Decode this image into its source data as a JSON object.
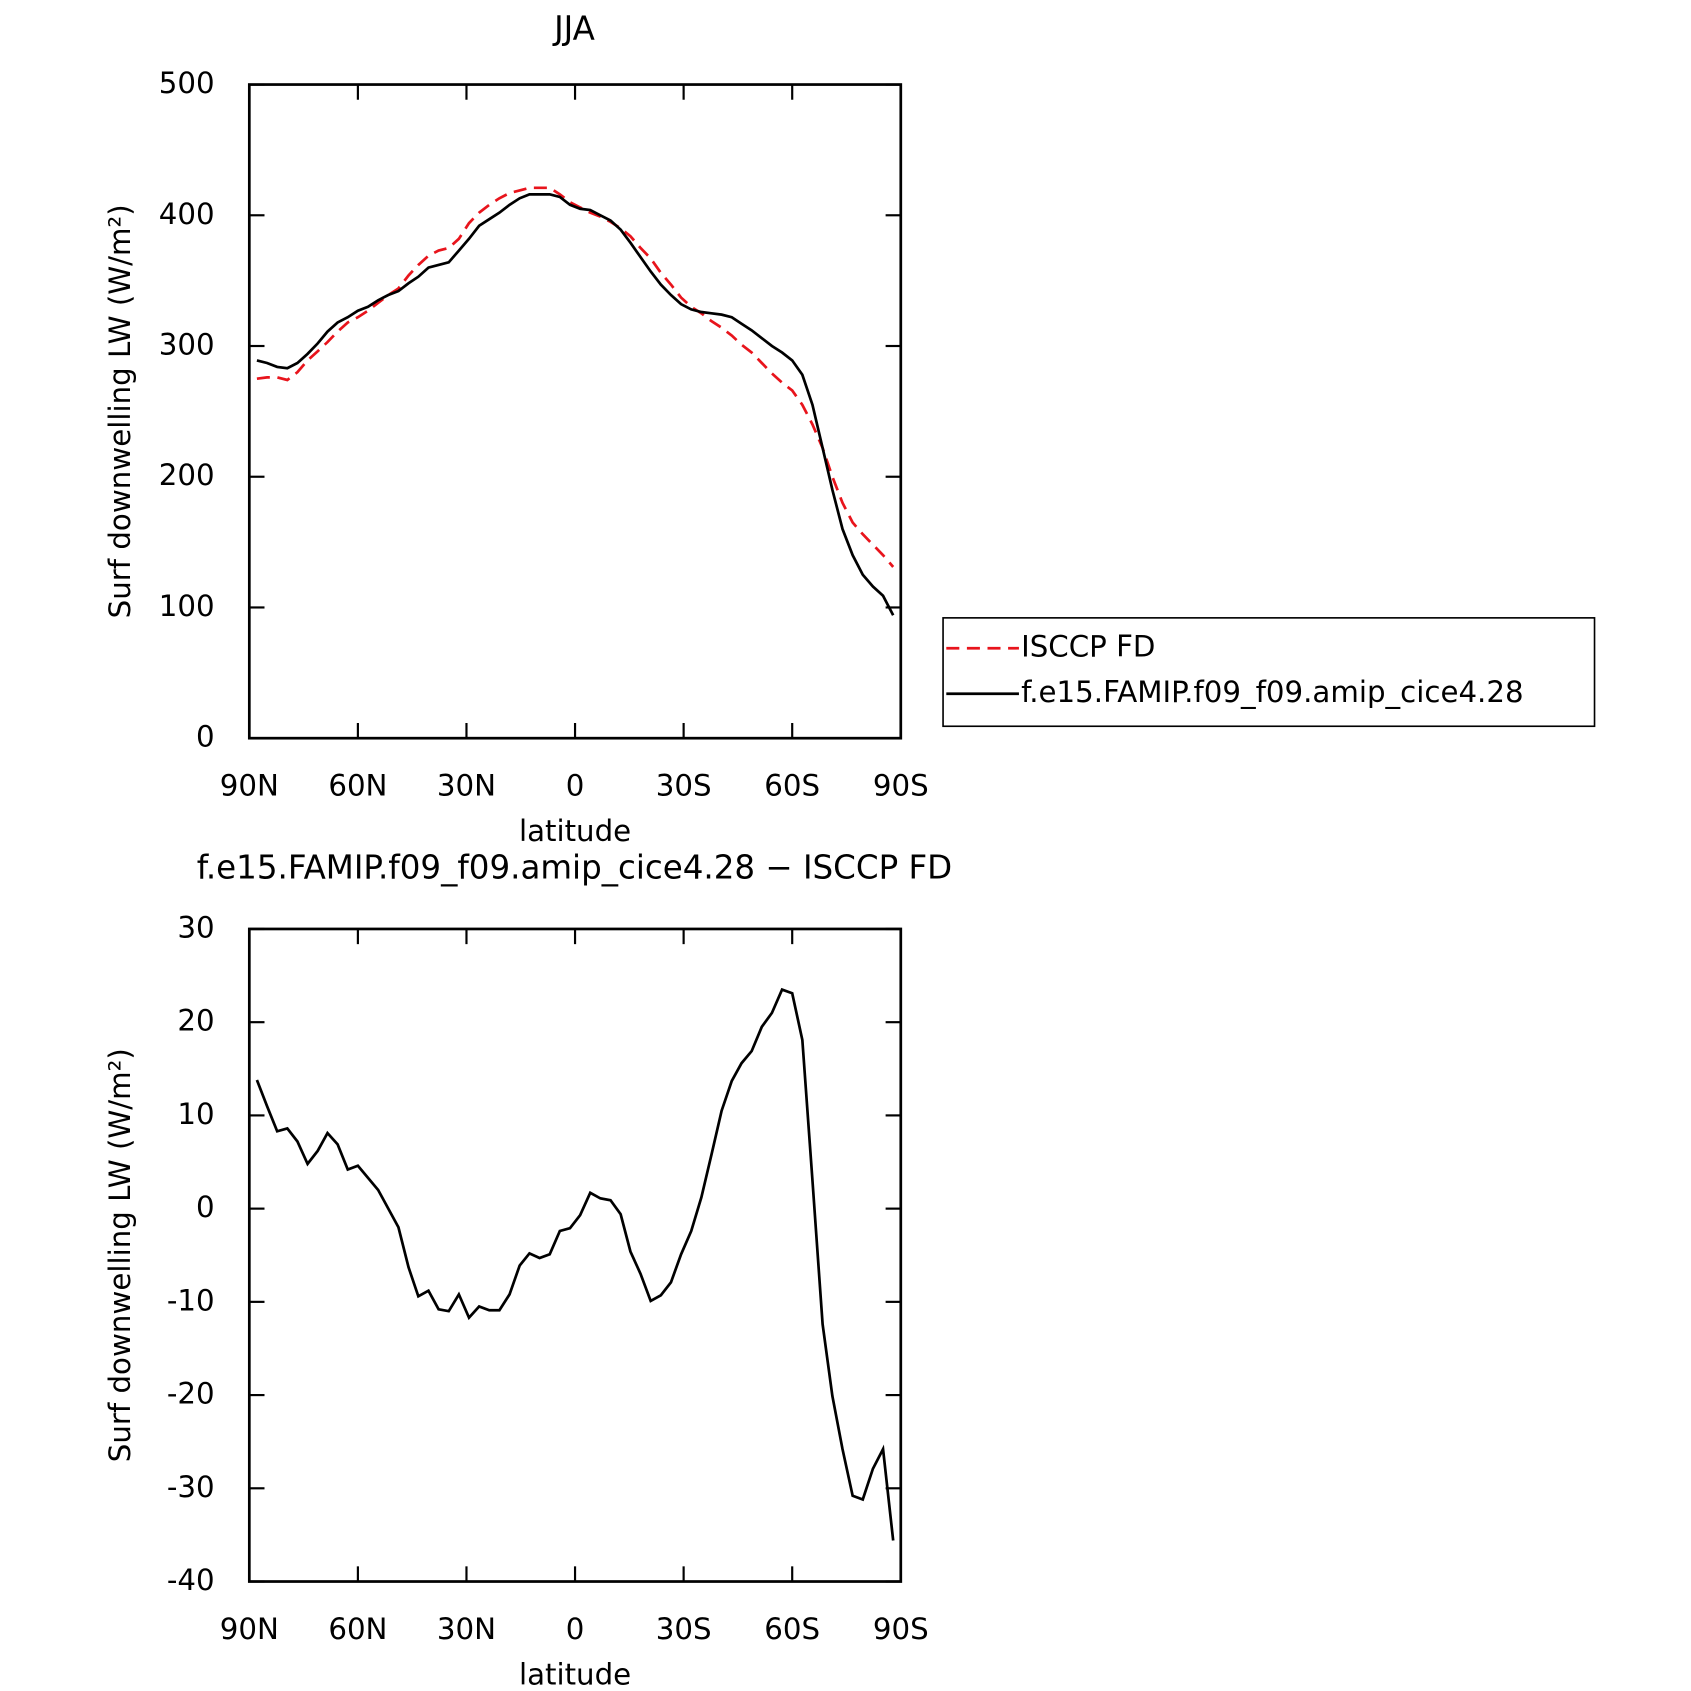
{
  "chart_data": [
    {
      "type": "line",
      "title": "JJA",
      "xlabel": "latitude",
      "ylabel": "Surf downwelling LW (W/m²)",
      "x": [
        87.9,
        85.1,
        82.3,
        79.5,
        76.7,
        73.9,
        71.1,
        68.4,
        65.6,
        62.8,
        60.0,
        57.2,
        54.4,
        51.6,
        48.8,
        46.0,
        43.3,
        40.5,
        37.7,
        34.9,
        32.1,
        29.3,
        26.5,
        23.7,
        20.9,
        18.1,
        15.3,
        12.6,
        9.8,
        7.0,
        4.2,
        1.4,
        -1.4,
        -4.2,
        -7.0,
        -9.8,
        -12.6,
        -15.3,
        -18.1,
        -20.9,
        -23.7,
        -26.5,
        -29.3,
        -32.1,
        -34.9,
        -37.7,
        -40.5,
        -43.3,
        -46.0,
        -48.8,
        -51.6,
        -54.4,
        -57.2,
        -60.0,
        -62.8,
        -65.6,
        -68.4,
        -71.1,
        -73.9,
        -76.7,
        -79.5,
        -82.3,
        -85.1,
        -87.9
      ],
      "series": [
        {
          "name": "ISCCP FD",
          "color": "#e8141c",
          "style": "dashed",
          "values": [
            275,
            276,
            276,
            274,
            280,
            289,
            296,
            303,
            311,
            318,
            322,
            327,
            333,
            339,
            344,
            354,
            362,
            369,
            373,
            375,
            382,
            394,
            402,
            408,
            413,
            417,
            419,
            421,
            421,
            421,
            416,
            410,
            406,
            402,
            399,
            395,
            390,
            384,
            375,
            367,
            356,
            347,
            337,
            330,
            325,
            319,
            314,
            308,
            301,
            295,
            287,
            279,
            272,
            266,
            255,
            240,
            222,
            200,
            180,
            165,
            156,
            148,
            140,
            131
          ]
        },
        {
          "name": "f.e15.FAMIP.f09_f09.amip_cice4.28",
          "color": "#000000",
          "style": "solid",
          "values": [
            289,
            287,
            284,
            283,
            287,
            294,
            302,
            311,
            318,
            322,
            327,
            330,
            335,
            339,
            342,
            348,
            353,
            360,
            362,
            364,
            373,
            382,
            392,
            397,
            402,
            408,
            413,
            416,
            416,
            416,
            414,
            408,
            405,
            404,
            400,
            396,
            389,
            379,
            368,
            357,
            347,
            339,
            332,
            328,
            326,
            325,
            324,
            322,
            317,
            312,
            306,
            300,
            295,
            289,
            278,
            255,
            222,
            190,
            160,
            140,
            125,
            116,
            109,
            94
          ]
        }
      ],
      "xlim": [
        90,
        -90
      ],
      "xticks": [
        {
          "value": 90,
          "label": "90N"
        },
        {
          "value": 60,
          "label": "60N"
        },
        {
          "value": 30,
          "label": "30N"
        },
        0,
        {
          "value": -30,
          "label": "30S"
        },
        {
          "value": -60,
          "label": "60S"
        },
        {
          "value": -90,
          "label": "90S"
        }
      ],
      "ylim": [
        0,
        500
      ],
      "yticks": [
        0,
        100,
        200,
        300,
        400,
        500
      ],
      "legend": "right"
    },
    {
      "type": "line",
      "title": "f.e15.FAMIP.f09_f09.amip_cice4.28 − ISCCP FD",
      "xlabel": "latitude",
      "ylabel": "Surf downwelling LW (W/m²)",
      "x": [
        87.9,
        85.1,
        82.3,
        79.5,
        76.7,
        73.9,
        71.1,
        68.4,
        65.6,
        62.8,
        60.0,
        57.2,
        54.4,
        51.6,
        48.8,
        46.0,
        43.3,
        40.5,
        37.7,
        34.9,
        32.1,
        29.3,
        26.5,
        23.7,
        20.9,
        18.1,
        15.3,
        12.6,
        9.8,
        7.0,
        4.2,
        1.4,
        -1.4,
        -4.2,
        -7.0,
        -9.8,
        -12.6,
        -15.3,
        -18.1,
        -20.9,
        -23.7,
        -26.5,
        -29.3,
        -32.1,
        -34.9,
        -37.7,
        -40.5,
        -43.3,
        -46.0,
        -48.8,
        -51.6,
        -54.4,
        -57.2,
        -60.0,
        -62.8,
        -65.6,
        -68.4,
        -71.1,
        -73.9,
        -76.7,
        -79.5,
        -82.3,
        -85.1,
        -87.9
      ],
      "values": [
        13.8,
        11,
        8.3,
        8.6,
        7.2,
        4.8,
        6.2,
        8.1,
        6.9,
        4.2,
        4.6,
        3.3,
        2,
        0,
        -2,
        -6.3,
        -9.4,
        -8.8,
        -10.8,
        -11.0,
        -9.2,
        -11.7,
        -10.5,
        -10.9,
        -10.9,
        -9.2,
        -6.1,
        -4.8,
        -5.3,
        -4.9,
        -2.4,
        -2.1,
        -0.7,
        1.7,
        1.1,
        0.9,
        -0.6,
        -4.6,
        -7.0,
        -9.9,
        -9.3,
        -7.9,
        -4.9,
        -2.4,
        1.2,
        5.8,
        10.5,
        13.7,
        15.6,
        16.9,
        19.5,
        21,
        23.5,
        23.1,
        18.1,
        3,
        -12.4,
        -20.1,
        -25.8,
        -30.8,
        -31.2,
        -27.9,
        -25.8,
        -35.6
      ],
      "color": "#000000",
      "xlim": [
        90,
        -90
      ],
      "xticks": [
        {
          "value": 90,
          "label": "90N"
        },
        {
          "value": 60,
          "label": "60N"
        },
        {
          "value": 30,
          "label": "30N"
        },
        0,
        {
          "value": -30,
          "label": "30S"
        },
        {
          "value": -60,
          "label": "60S"
        },
        {
          "value": -90,
          "label": "90S"
        }
      ],
      "ylim": [
        -40,
        30
      ],
      "yticks": [
        -40,
        -30,
        -20,
        -10,
        0,
        10,
        20,
        30
      ]
    }
  ]
}
